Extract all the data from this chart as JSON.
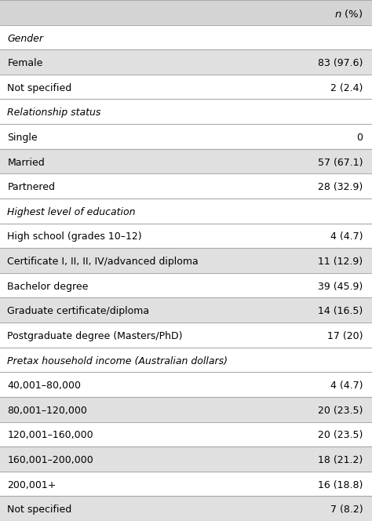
{
  "header_value": "n (%)",
  "rows": [
    {
      "label": "Gender",
      "value": "",
      "type": "section",
      "shade": false
    },
    {
      "label": "Female",
      "value": "83 (97.6)",
      "type": "data",
      "shade": true
    },
    {
      "label": "Not specified",
      "value": "2 (2.4)",
      "type": "data",
      "shade": false
    },
    {
      "label": "Relationship status",
      "value": "",
      "type": "section",
      "shade": false
    },
    {
      "label": "Single",
      "value": "0",
      "type": "data",
      "shade": false
    },
    {
      "label": "Married",
      "value": "57 (67.1)",
      "type": "data",
      "shade": true
    },
    {
      "label": "Partnered",
      "value": "28 (32.9)",
      "type": "data",
      "shade": false
    },
    {
      "label": "Highest level of education",
      "value": "",
      "type": "section",
      "shade": false
    },
    {
      "label": "High school (grades 10–12)",
      "value": "4 (4.7)",
      "type": "data",
      "shade": false
    },
    {
      "label": "Certificate I, II, II, IV/advanced diploma",
      "value": "11 (12.9)",
      "type": "data",
      "shade": true
    },
    {
      "label": "Bachelor degree",
      "value": "39 (45.9)",
      "type": "data",
      "shade": false
    },
    {
      "label": "Graduate certificate/diploma",
      "value": "14 (16.5)",
      "type": "data",
      "shade": true
    },
    {
      "label": "Postgraduate degree (Masters/PhD)",
      "value": "17 (20)",
      "type": "data",
      "shade": false
    },
    {
      "label": "Pretax household income (Australian dollars)",
      "value": "",
      "type": "section",
      "shade": false
    },
    {
      "label": "40,001–80,000",
      "value": "4 (4.7)",
      "type": "data",
      "shade": false
    },
    {
      "label": "80,001–120,000",
      "value": "20 (23.5)",
      "type": "data",
      "shade": true
    },
    {
      "label": "120,001–160,000",
      "value": "20 (23.5)",
      "type": "data",
      "shade": false
    },
    {
      "label": "160,001–200,000",
      "value": "18 (21.2)",
      "type": "data",
      "shade": true
    },
    {
      "label": "200,001+",
      "value": "16 (18.8)",
      "type": "data",
      "shade": false
    },
    {
      "label": "Not specified",
      "value": "7 (8.2)",
      "type": "data",
      "shade": true
    }
  ],
  "shade_color": "#e0e0e0",
  "white_color": "#ffffff",
  "header_bg_color": "#d4d4d4",
  "line_color": "#aaaaaa",
  "text_color": "#000000",
  "font_size": 9.0,
  "header_font_size": 9.5,
  "fig_width": 4.74,
  "fig_height": 6.64,
  "dpi": 100
}
